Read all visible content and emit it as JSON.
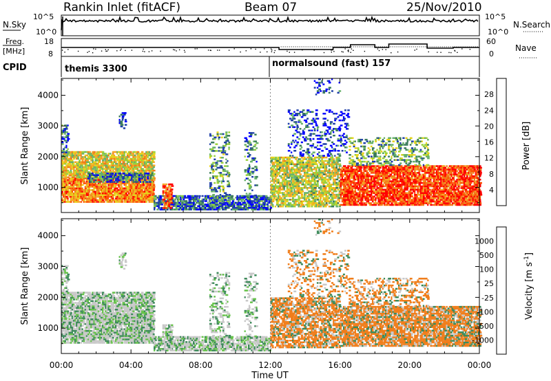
{
  "header": {
    "title": "Rankin Inlet (fitACF)",
    "beam": "Beam 07",
    "date": "25/Nov/2010"
  },
  "top_panels": {
    "nsky_label": "N.Sky",
    "nsky_ticks": [
      "10^5",
      "10^0"
    ],
    "nsearch_label": "N.Search",
    "freq_label": "Freq.",
    "freq_unit": "[MHz]",
    "freq_ticks": [
      "18",
      "8"
    ],
    "nave_label": "Nave",
    "nave_ticks": [
      "60",
      "0"
    ],
    "cpid_label": "CPID",
    "cpid_segments": [
      "themis 3300",
      "normalsound (fast) 157"
    ]
  },
  "chart_data": [
    {
      "type": "heatmap",
      "title": "",
      "quantity": "Power",
      "ylabel": "Slant Range [km]",
      "xlabel": "",
      "x_ticks": [
        "00:00",
        "04:00",
        "08:00",
        "12:00",
        "16:00",
        "20:00",
        "00:00"
      ],
      "y_ticks": [
        1000,
        2000,
        3000,
        4000
      ],
      "ylim": [
        180,
        4550
      ],
      "colorbar": {
        "label": "Power [dB]",
        "ticks": [
          "28",
          "24",
          "20",
          "16",
          "12",
          "8",
          "4"
        ],
        "colors": [
          "#0000ff",
          "#1f3fa8",
          "#3a7a5a",
          "#66b06a",
          "#99d13a",
          "#e6d21a",
          "#f5a623",
          "#f07d1a",
          "#ff4d00",
          "#ff0000"
        ]
      }
    },
    {
      "type": "heatmap",
      "title": "",
      "quantity": "Velocity",
      "ylabel": "Slant Range [km]",
      "xlabel": "Time UT",
      "x_ticks": [
        "00:00",
        "04:00",
        "08:00",
        "12:00",
        "16:00",
        "20:00",
        "00:00"
      ],
      "y_ticks": [
        1000,
        2000,
        3000,
        4000
      ],
      "ylim": [
        180,
        4550
      ],
      "colorbar": {
        "label": "Velocity [m s",
        "label_sup": "-1",
        "ticks": [
          "1000",
          "500",
          "100",
          "25",
          "-25",
          "-100",
          "-500",
          "-1000"
        ],
        "colors": [
          "#1c3fa8",
          "#2f6e8e",
          "#3d8a5a",
          "#66c24a",
          "#c8c8c8",
          "#f0a03a",
          "#f07d1a",
          "#ff4d00",
          "#ff0000"
        ]
      }
    }
  ]
}
